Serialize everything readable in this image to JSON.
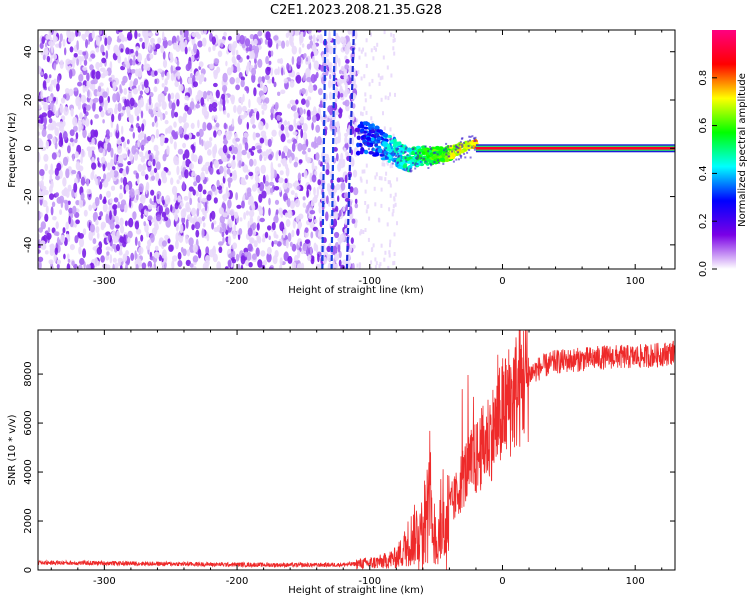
{
  "title": "C2E1.2023.208.21.35.G28",
  "chart_data": [
    {
      "type": "heatmap",
      "title": "C2E1.2023.208.21.35.G28",
      "xlabel": "Height of straight line (km)",
      "ylabel": "Frequency (Hz)",
      "xlim": [
        -350,
        130
      ],
      "ylim": [
        -50,
        49
      ],
      "xticks": [
        -300,
        -200,
        -100,
        0,
        100
      ],
      "yticks": [
        -40,
        -20,
        0,
        20,
        40
      ],
      "grid": false,
      "colorbar": {
        "label": "Normalized spectral amplitude",
        "range": [
          0,
          1
        ],
        "ticks": [
          "0.0",
          "0.2",
          "0.4",
          "0.6",
          "0.8"
        ],
        "colors": [
          "#ffffff",
          "#7a00e6",
          "#0000ff",
          "#00ffff",
          "#00ff00",
          "#ffff00",
          "#ff0000",
          "#ff0080"
        ]
      },
      "features": {
        "noise_region_x": [
          -350,
          -110
        ],
        "signal_line": {
          "x_start": -20,
          "x_end": 130,
          "frequency": 0,
          "amplitude": 0.9
        },
        "vertical_streaks_x": [
          -135,
          -128,
          -115
        ],
        "transition_path": [
          {
            "x": -110,
            "f": 5
          },
          {
            "x": -95,
            "f": 3
          },
          {
            "x": -80,
            "f": -2
          },
          {
            "x": -70,
            "f": -5
          },
          {
            "x": -60,
            "f": -3
          },
          {
            "x": -50,
            "f": -3
          },
          {
            "x": -40,
            "f": -2
          },
          {
            "x": -30,
            "f": 0
          },
          {
            "x": -20,
            "f": 2
          }
        ]
      }
    },
    {
      "type": "line",
      "xlabel": "Height of straight line (km)",
      "ylabel": "SNR (10 * v/v)",
      "xlim": [
        -350,
        130
      ],
      "ylim": [
        0,
        9800
      ],
      "xticks": [
        -300,
        -200,
        -100,
        0,
        100
      ],
      "yticks": [
        0,
        2000,
        4000,
        6000,
        8000
      ],
      "grid": false,
      "series": [
        {
          "color": "#ee2a2a",
          "x": [
            -350,
            -300,
            -250,
            -200,
            -150,
            -120,
            -100,
            -90,
            -80,
            -75,
            -70,
            -65,
            -60,
            -55,
            -50,
            -45,
            -40,
            -35,
            -30,
            -25,
            -20,
            -15,
            -10,
            -5,
            0,
            10,
            20,
            30,
            40,
            60,
            80,
            100,
            120,
            130
          ],
          "y": [
            300,
            280,
            250,
            220,
            200,
            220,
            280,
            350,
            500,
            800,
            1200,
            1500,
            2000,
            2500,
            1200,
            1500,
            2500,
            3000,
            3800,
            4200,
            4500,
            5000,
            5500,
            5800,
            6500,
            7300,
            8000,
            8300,
            8500,
            8600,
            8700,
            8700,
            8800,
            8900
          ]
        }
      ]
    }
  ]
}
